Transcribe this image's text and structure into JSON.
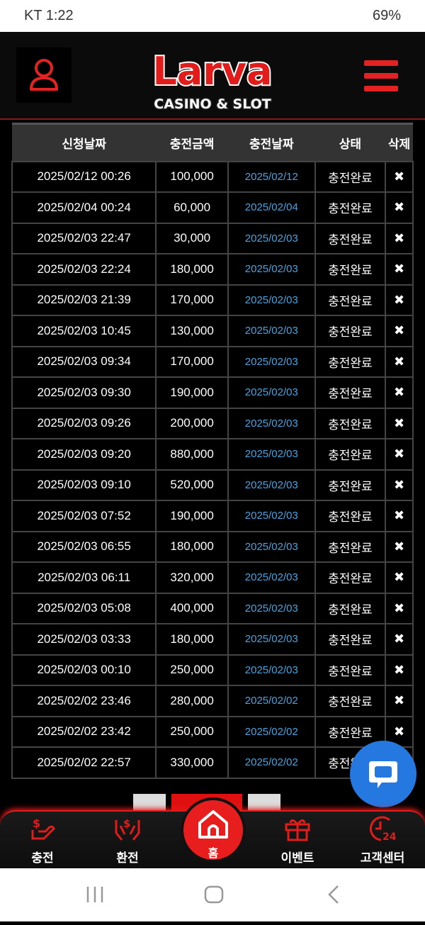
{
  "status": {
    "carrier_time": "KT 1:22",
    "battery": "69%"
  },
  "header": {
    "logo_text": "Larva",
    "logo_sub": "CASINO & SLOT"
  },
  "table": {
    "headers": [
      "신청날짜",
      "충전금액",
      "충전날짜",
      "상태",
      "삭제"
    ],
    "rows": [
      [
        "2025/02/12 00:26",
        "100,000",
        "2025/02/12",
        "충전완료",
        "✖"
      ],
      [
        "2025/02/04 00:24",
        "60,000",
        "2025/02/04",
        "충전완료",
        "✖"
      ],
      [
        "2025/02/03 22:47",
        "30,000",
        "2025/02/03",
        "충전완료",
        "✖"
      ],
      [
        "2025/02/03 22:24",
        "180,000",
        "2025/02/03",
        "충전완료",
        "✖"
      ],
      [
        "2025/02/03 21:39",
        "170,000",
        "2025/02/03",
        "충전완료",
        "✖"
      ],
      [
        "2025/02/03 10:45",
        "130,000",
        "2025/02/03",
        "충전완료",
        "✖"
      ],
      [
        "2025/02/03 09:34",
        "170,000",
        "2025/02/03",
        "충전완료",
        "✖"
      ],
      [
        "2025/02/03 09:30",
        "190,000",
        "2025/02/03",
        "충전완료",
        "✖"
      ],
      [
        "2025/02/03 09:26",
        "200,000",
        "2025/02/03",
        "충전완료",
        "✖"
      ],
      [
        "2025/02/03 09:20",
        "880,000",
        "2025/02/03",
        "충전완료",
        "✖"
      ],
      [
        "2025/02/03 09:10",
        "520,000",
        "2025/02/03",
        "충전완료",
        "✖"
      ],
      [
        "2025/02/03 07:52",
        "190,000",
        "2025/02/03",
        "충전완료",
        "✖"
      ],
      [
        "2025/02/03 06:55",
        "180,000",
        "2025/02/03",
        "충전완료",
        "✖"
      ],
      [
        "2025/02/03 06:11",
        "320,000",
        "2025/02/03",
        "충전완료",
        "✖"
      ],
      [
        "2025/02/03 05:08",
        "400,000",
        "2025/02/03",
        "충전완료",
        "✖"
      ],
      [
        "2025/02/03 03:33",
        "180,000",
        "2025/02/03",
        "충전완료",
        "✖"
      ],
      [
        "2025/02/03 00:10",
        "250,000",
        "2025/02/03",
        "충전완료",
        "✖"
      ],
      [
        "2025/02/02 23:46",
        "280,000",
        "2025/02/02",
        "충전완료",
        "✖"
      ],
      [
        "2025/02/02 23:42",
        "250,000",
        "2025/02/02",
        "충전완료",
        "✖"
      ],
      [
        "2025/02/02 22:57",
        "330,000",
        "2025/02/02",
        "충전완료",
        ""
      ]
    ]
  },
  "nav": {
    "items": [
      "충전",
      "환전",
      "홈",
      "이벤트",
      "고객센터"
    ]
  },
  "colors": {
    "accent": "#e21b1b",
    "link": "#4aa3e0",
    "chat": "#2478e0"
  }
}
